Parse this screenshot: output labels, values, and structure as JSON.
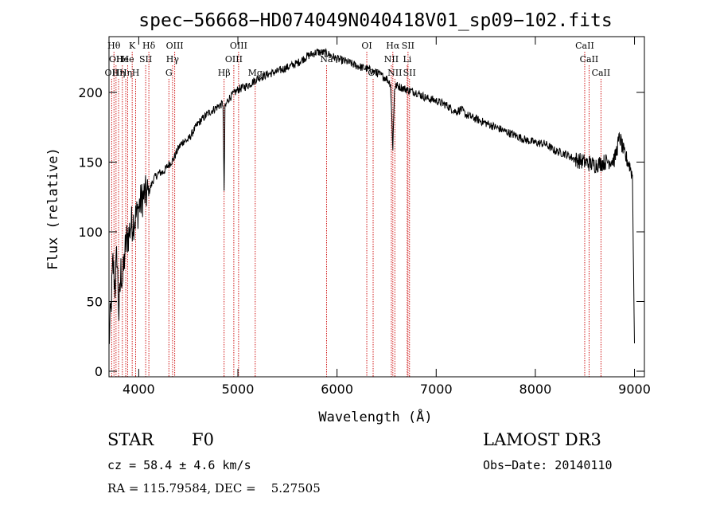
{
  "chart_data": {
    "type": "line",
    "title": "spec−56668−HD074049N040418V01_sp09−102.fits",
    "xlabel": "Wavelength (Å)",
    "ylabel": "Flux (relative)",
    "xlim": [
      3700,
      9100
    ],
    "ylim": [
      -4,
      240
    ],
    "x_ticks": [
      4000,
      5000,
      6000,
      7000,
      8000,
      9000
    ],
    "y_ticks": [
      0,
      50,
      100,
      150,
      200
    ],
    "grid": false,
    "series": [
      {
        "x": [
          3700,
          3720,
          3740,
          3760,
          3780,
          3800,
          3820,
          3840,
          3860,
          3880,
          3900,
          3920,
          3950,
          3980,
          4000,
          4050,
          4100,
          4150,
          4200,
          4250,
          4300,
          4350,
          4400,
          4450,
          4500,
          4550,
          4600,
          4700,
          4800,
          4850,
          4861,
          4870,
          4900,
          5000,
          5100,
          5200,
          5300,
          5400,
          5500,
          5600,
          5700,
          5800,
          5900,
          6000,
          6100,
          6200,
          6300,
          6400,
          6500,
          6540,
          6563,
          6580,
          6600,
          6700,
          6800,
          6900,
          7000,
          7100,
          7200,
          7250,
          7300,
          7400,
          7500,
          7600,
          7700,
          7800,
          7900,
          8000,
          8100,
          8200,
          8300,
          8400,
          8500,
          8600,
          8700,
          8800,
          8850,
          8900,
          8950,
          8980,
          9000
        ],
        "y": [
          20,
          45,
          78,
          60,
          85,
          40,
          72,
          65,
          85,
          95,
          98,
          105,
          108,
          112,
          118,
          126,
          128,
          138,
          142,
          143,
          148,
          152,
          160,
          165,
          166,
          172,
          178,
          185,
          190,
          192,
          130,
          189,
          195,
          202,
          205,
          210,
          213,
          215,
          218,
          221,
          226,
          229,
          228,
          224,
          222,
          219,
          217,
          214,
          210,
          206,
          160,
          203,
          205,
          202,
          200,
          196,
          194,
          191,
          186,
          188,
          184,
          181,
          178,
          175,
          172,
          169,
          166,
          164,
          163,
          158,
          156,
          152,
          150,
          148,
          150,
          152,
          168,
          155,
          148,
          140,
          20
        ]
      }
    ],
    "line_markers": [
      {
        "wave": 3727,
        "row": 2,
        "label": "OII"
      },
      {
        "wave": 3750,
        "row": 0,
        "label": "Hθ"
      },
      {
        "wave": 3771,
        "row": 1,
        "label": "OII"
      },
      {
        "wave": 3797,
        "row": 2,
        "label": "Hη"
      },
      {
        "wave": 3835,
        "row": 1,
        "label": "He"
      },
      {
        "wave": 3869,
        "row": 2,
        "label": "Hη"
      },
      {
        "wave": 3889,
        "row": 1,
        "label": "He"
      },
      {
        "wave": 3934,
        "row": 0,
        "label": "K"
      },
      {
        "wave": 3969,
        "row": 2,
        "label": "H"
      },
      {
        "wave": 4070,
        "row": 1,
        "label": "SII"
      },
      {
        "wave": 4102,
        "row": 0,
        "label": "Hδ"
      },
      {
        "wave": 4304,
        "row": 2,
        "label": "G"
      },
      {
        "wave": 4341,
        "row": 1,
        "label": "Hγ"
      },
      {
        "wave": 4363,
        "row": 0,
        "label": "OIII"
      },
      {
        "wave": 4861,
        "row": 2,
        "label": "Hβ"
      },
      {
        "wave": 4959,
        "row": 1,
        "label": "OIII"
      },
      {
        "wave": 5007,
        "row": 0,
        "label": "OIII"
      },
      {
        "wave": 5175,
        "row": 2,
        "label": "Mg"
      },
      {
        "wave": 5894,
        "row": 1,
        "label": "Na"
      },
      {
        "wave": 6300,
        "row": 0,
        "label": "OI"
      },
      {
        "wave": 6364,
        "row": 2,
        "label": "OI"
      },
      {
        "wave": 6548,
        "row": 1,
        "label": "NII"
      },
      {
        "wave": 6563,
        "row": 0,
        "label": "Hα"
      },
      {
        "wave": 6583,
        "row": 2,
        "label": "NII"
      },
      {
        "wave": 6708,
        "row": 1,
        "label": "Li"
      },
      {
        "wave": 6716,
        "row": 0,
        "label": "SII"
      },
      {
        "wave": 6731,
        "row": 2,
        "label": "SII"
      },
      {
        "wave": 8498,
        "row": 0,
        "label": "CaII"
      },
      {
        "wave": 8542,
        "row": 1,
        "label": "CaII"
      },
      {
        "wave": 8662,
        "row": 2,
        "label": "CaII"
      }
    ]
  },
  "info": {
    "class": "STAR",
    "subclass": "F0",
    "survey": "LAMOST DR3",
    "cz": "cz = 58.4 ± 4.6 km/s",
    "obs_date": "Obs−Date: 20140110",
    "radec": "RA = 115.79584, DEC =    5.27505"
  }
}
